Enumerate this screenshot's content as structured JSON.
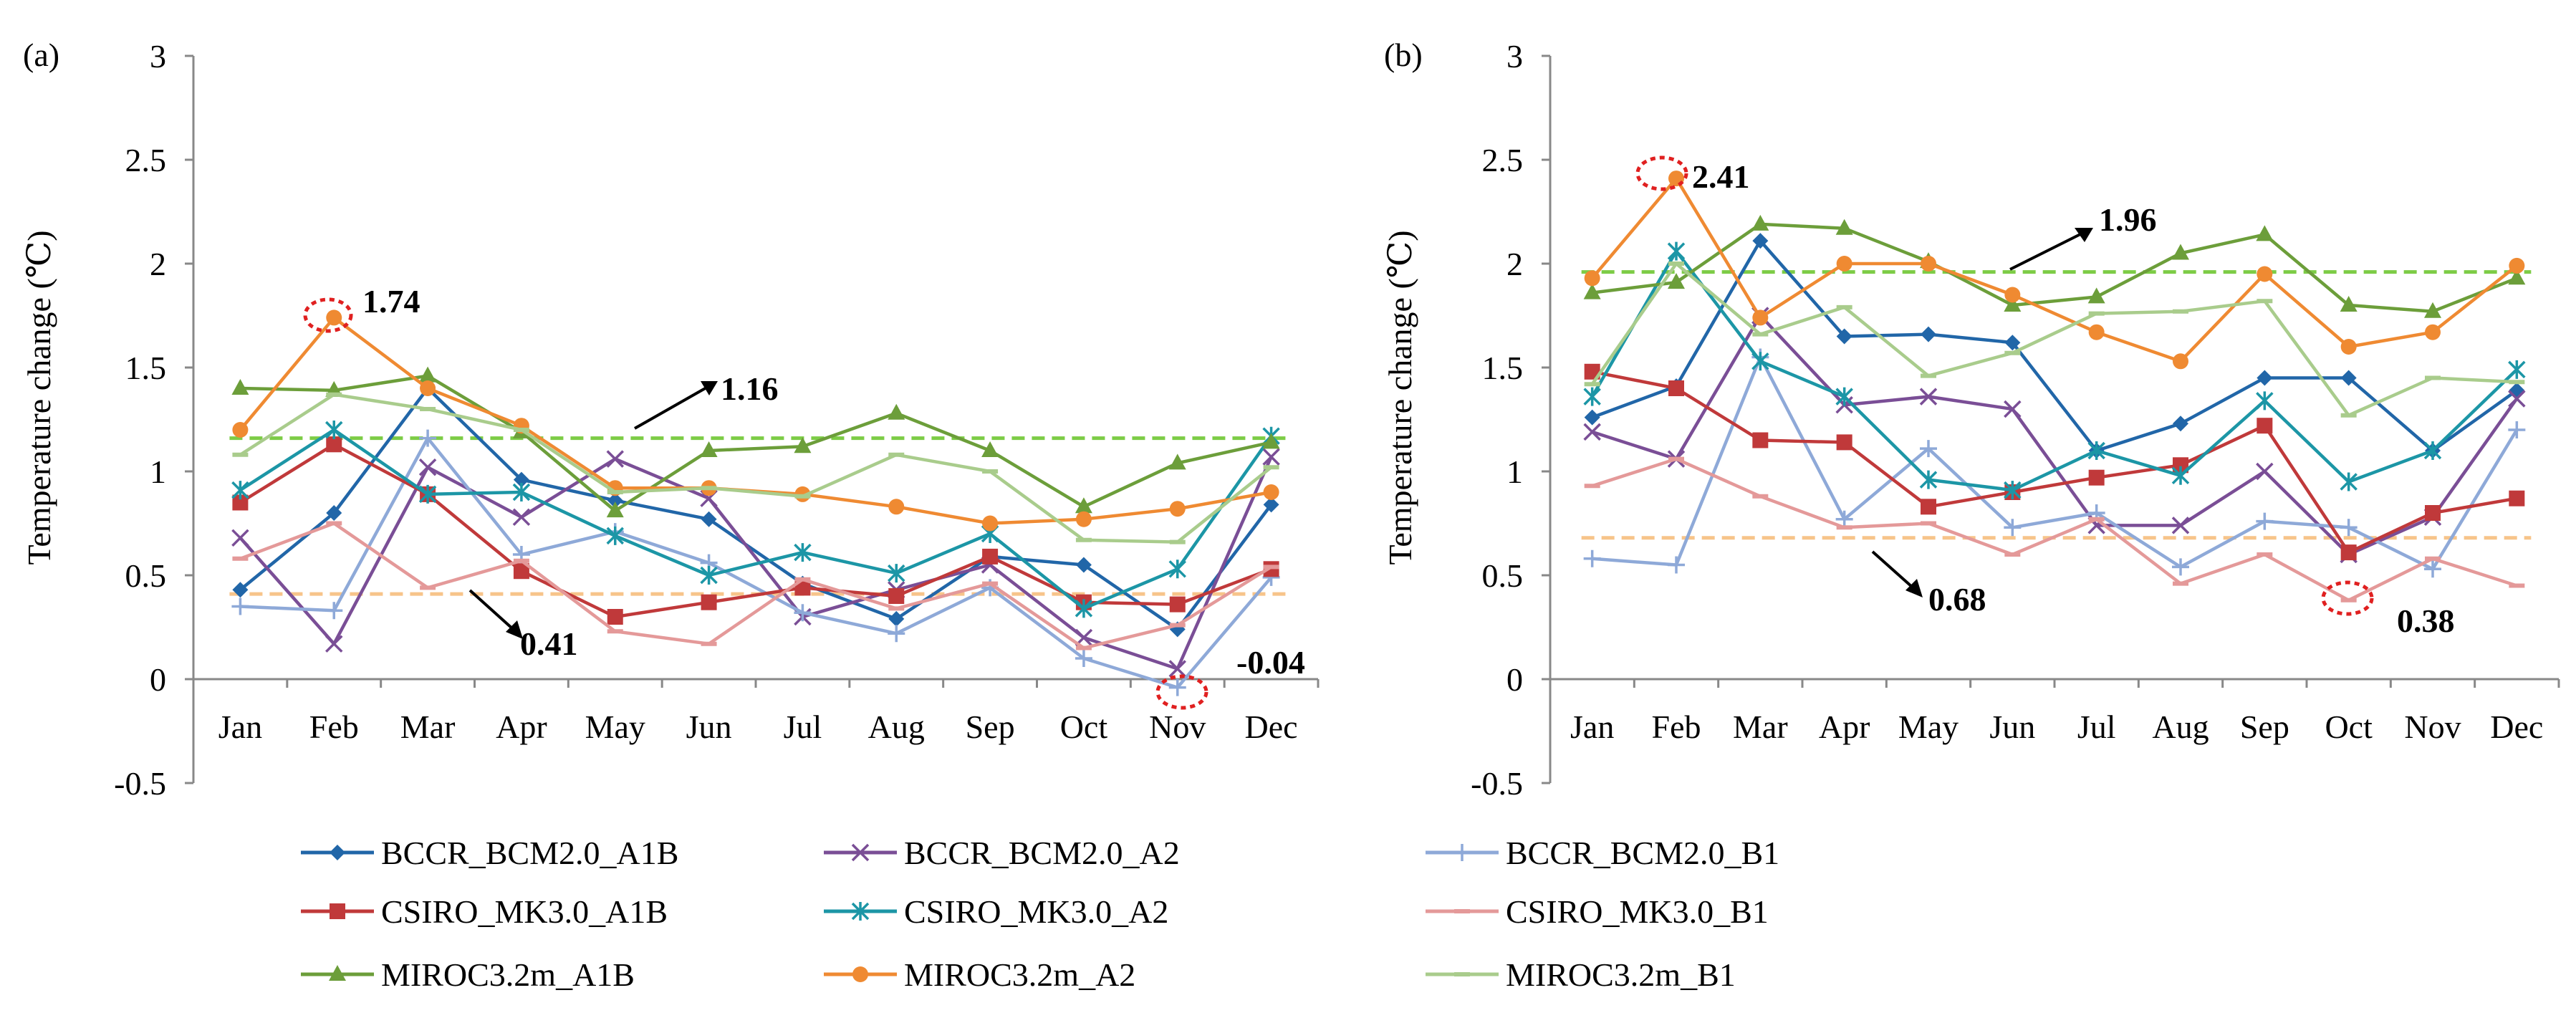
{
  "chart_data": [
    {
      "panel": "(a)",
      "type": "line",
      "ylabel": "Temperature change (℃)",
      "ylim": [
        -0.5,
        3
      ],
      "yticks": [
        "3",
        "2.5",
        "2",
        "1.5",
        "1",
        "0.5",
        "0",
        "-0.5"
      ],
      "categories": [
        "Jan",
        "Feb",
        "Mar",
        "Apr",
        "May",
        "Jun",
        "Jul",
        "Aug",
        "Sep",
        "Oct",
        "Nov",
        "Dec"
      ],
      "series": [
        {
          "name": "BCCR_BCM2.0_A1B",
          "color": "#2166a8",
          "marker": "diamond",
          "values": [
            0.43,
            0.8,
            1.4,
            0.96,
            0.86,
            0.77,
            0.46,
            0.29,
            0.59,
            0.55,
            0.24,
            0.84
          ]
        },
        {
          "name": "BCCR_BCM2.0_A2",
          "color": "#7a4e96",
          "marker": "x",
          "values": [
            0.68,
            0.17,
            1.02,
            0.78,
            1.06,
            0.87,
            0.3,
            0.43,
            0.55,
            0.2,
            0.05,
            1.07
          ]
        },
        {
          "name": "BCCR_BCM2.0_B1",
          "color": "#8ea9d8",
          "marker": "plus",
          "values": [
            0.35,
            0.33,
            1.16,
            0.6,
            0.71,
            0.56,
            0.32,
            0.22,
            0.44,
            0.1,
            -0.04,
            0.49
          ]
        },
        {
          "name": "CSIRO_MK3.0_A1B",
          "color": "#c0393a",
          "marker": "square",
          "values": [
            0.85,
            1.13,
            0.89,
            0.52,
            0.3,
            0.37,
            0.44,
            0.4,
            0.59,
            0.37,
            0.36,
            0.53
          ]
        },
        {
          "name": "CSIRO_MK3.0_A2",
          "color": "#1c96a6",
          "marker": "star",
          "values": [
            0.91,
            1.2,
            0.89,
            0.9,
            0.69,
            0.5,
            0.61,
            0.51,
            0.7,
            0.34,
            0.53,
            1.17
          ]
        },
        {
          "name": "CSIRO_MK3.0_B1",
          "color": "#e49999",
          "marker": "dash",
          "values": [
            0.58,
            0.75,
            0.44,
            0.57,
            0.23,
            0.17,
            0.48,
            0.34,
            0.46,
            0.15,
            0.26,
            0.54
          ]
        },
        {
          "name": "MIROC3.2m_A1B",
          "color": "#6c9e3a",
          "marker": "triangle",
          "values": [
            1.4,
            1.39,
            1.46,
            1.19,
            0.81,
            1.1,
            1.12,
            1.28,
            1.1,
            0.83,
            1.04,
            1.14
          ]
        },
        {
          "name": "MIROC3.2m_A2",
          "color": "#ef8a32",
          "marker": "circle",
          "values": [
            1.2,
            1.74,
            1.4,
            1.22,
            0.92,
            0.92,
            0.89,
            0.83,
            0.75,
            0.77,
            0.82,
            0.9
          ]
        },
        {
          "name": "MIROC3.2m_B1",
          "color": "#a9cc8c",
          "marker": "dash",
          "values": [
            1.08,
            1.37,
            1.3,
            1.2,
            0.9,
            0.92,
            0.88,
            1.08,
            1.0,
            0.67,
            0.66,
            1.02
          ]
        }
      ],
      "ref_lines": [
        {
          "value": 1.16,
          "color": "#7dcc46"
        },
        {
          "value": 0.41,
          "color": "#f7c48a"
        }
      ],
      "annotations": [
        "1.74",
        "1.16",
        "0.41",
        "-0.04"
      ]
    },
    {
      "panel": "(b)",
      "type": "line",
      "ylabel": "Temperature change (℃)",
      "ylim": [
        -0.5,
        3
      ],
      "yticks": [
        "3",
        "2.5",
        "2",
        "1.5",
        "1",
        "0.5",
        "0",
        "-0.5"
      ],
      "categories": [
        "Jan",
        "Feb",
        "Mar",
        "Apr",
        "May",
        "Jun",
        "Jul",
        "Aug",
        "Sep",
        "Oct",
        "Nov",
        "Dec"
      ],
      "series": [
        {
          "name": "BCCR_BCM2.0_A1B",
          "color": "#2166a8",
          "marker": "diamond",
          "values": [
            1.26,
            1.41,
            2.11,
            1.65,
            1.66,
            1.62,
            1.1,
            1.23,
            1.45,
            1.45,
            1.1,
            1.39
          ]
        },
        {
          "name": "BCCR_BCM2.0_A2",
          "color": "#7a4e96",
          "marker": "x",
          "values": [
            1.19,
            1.06,
            1.75,
            1.32,
            1.36,
            1.3,
            0.74,
            0.74,
            1.0,
            0.6,
            0.78,
            1.35
          ]
        },
        {
          "name": "BCCR_BCM2.0_B1",
          "color": "#8ea9d8",
          "marker": "plus",
          "values": [
            0.58,
            0.55,
            1.55,
            0.77,
            1.11,
            0.73,
            0.8,
            0.54,
            0.76,
            0.73,
            0.53,
            1.2
          ]
        },
        {
          "name": "CSIRO_MK3.0_A1B",
          "color": "#c0393a",
          "marker": "square",
          "values": [
            1.48,
            1.4,
            1.15,
            1.14,
            0.83,
            0.9,
            0.97,
            1.03,
            1.22,
            0.61,
            0.8,
            0.87
          ]
        },
        {
          "name": "CSIRO_MK3.0_A2",
          "color": "#1c96a6",
          "marker": "star",
          "values": [
            1.36,
            2.06,
            1.53,
            1.36,
            0.96,
            0.91,
            1.1,
            0.98,
            1.34,
            0.95,
            1.1,
            1.49
          ]
        },
        {
          "name": "CSIRO_MK3.0_B1",
          "color": "#e49999",
          "marker": "dash",
          "values": [
            0.93,
            1.06,
            0.88,
            0.73,
            0.75,
            0.6,
            0.77,
            0.46,
            0.6,
            0.38,
            0.58,
            0.45
          ]
        },
        {
          "name": "MIROC3.2m_A1B",
          "color": "#6c9e3a",
          "marker": "triangle",
          "values": [
            1.86,
            1.91,
            2.19,
            2.17,
            2.01,
            1.8,
            1.84,
            2.05,
            2.14,
            1.8,
            1.77,
            1.93
          ]
        },
        {
          "name": "MIROC3.2m_A2",
          "color": "#ef8a32",
          "marker": "circle",
          "values": [
            1.93,
            2.41,
            1.74,
            2.0,
            2.0,
            1.85,
            1.67,
            1.53,
            1.95,
            1.6,
            1.67,
            1.99
          ]
        },
        {
          "name": "MIROC3.2m_B1",
          "color": "#a9cc8c",
          "marker": "dash",
          "values": [
            1.42,
            2.0,
            1.66,
            1.79,
            1.46,
            1.57,
            1.76,
            1.77,
            1.82,
            1.27,
            1.45,
            1.43
          ]
        }
      ],
      "ref_lines": [
        {
          "value": 1.96,
          "color": "#7dcc46"
        },
        {
          "value": 0.68,
          "color": "#f7c48a"
        }
      ],
      "annotations": [
        "2.41",
        "1.96",
        "0.68",
        "0.38"
      ]
    }
  ]
}
